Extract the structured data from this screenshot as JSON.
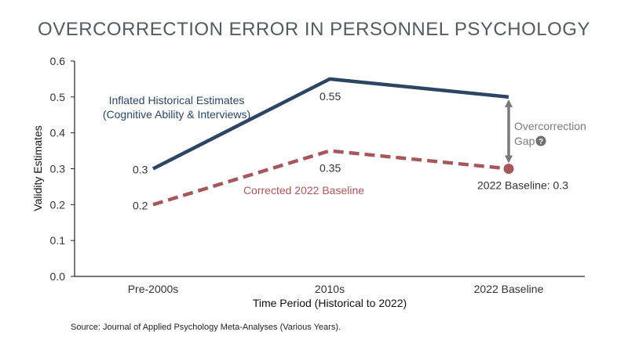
{
  "chart_data": {
    "type": "line",
    "title": "OVERCORRECTION ERROR IN PERSONNEL PSYCHOLOGY",
    "xlabel": "Time Period (Historical to 2022)",
    "ylabel": "Validity Estimates",
    "categories": [
      "Pre-2000s",
      "2010s",
      "2022 Baseline"
    ],
    "ylim": [
      0,
      0.6
    ],
    "yticks": [
      "0.0",
      "0.1",
      "0.2",
      "0.3",
      "0.4",
      "0.5",
      "0.6"
    ],
    "grid": false,
    "series": [
      {
        "name_line1": "Inflated Historical Estimates",
        "name_line2": "(Cognitive Ability & Interviews)",
        "values": [
          0.3,
          0.55,
          0.5
        ],
        "data_labels": [
          "0.3",
          "0.55",
          ""
        ],
        "color": "#2b4563",
        "style": "solid"
      },
      {
        "name_line1": "Corrected 2022 Baseline",
        "values": [
          0.2,
          0.35,
          0.3
        ],
        "data_labels": [
          "0.2",
          "0.35",
          "2022 Baseline: 0.3"
        ],
        "color": "#a5585c",
        "style": "dashed"
      }
    ],
    "annotations": {
      "gap_label_line1": "Overcorrection",
      "gap_label_line2": "Gap",
      "gap_icon": "question-circle-icon",
      "gap_color": "#7a7a7a"
    },
    "source": "Source: Journal of Applied Psychology Meta-Analyses (Various Years)."
  }
}
